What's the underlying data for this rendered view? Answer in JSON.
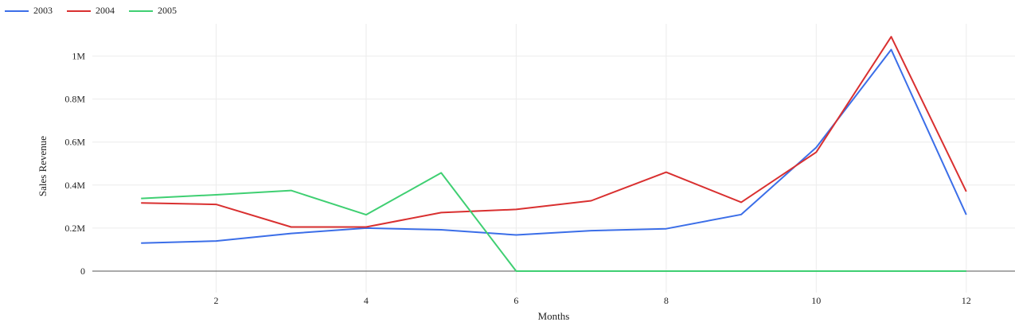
{
  "chart_data": {
    "type": "line",
    "title": "",
    "xlabel": "Months",
    "ylabel": "Sales Revenue",
    "xlim": [
      0.35,
      12.65
    ],
    "ylim": [
      -100000,
      1150000
    ],
    "x_ticks": [
      2,
      4,
      6,
      8,
      10,
      12
    ],
    "y_ticks": [
      0,
      200000,
      400000,
      600000,
      800000,
      1000000
    ],
    "y_tick_labels": [
      "0",
      "0.2M",
      "0.4M",
      "0.6M",
      "0.8M",
      "1M"
    ],
    "grid": true,
    "legend_position": "top-left",
    "x": [
      1,
      2,
      3,
      4,
      5,
      6,
      7,
      8,
      9,
      10,
      11,
      12
    ],
    "series": [
      {
        "name": "2003",
        "color": "#3b6ee8",
        "values": [
          130000,
          140000,
          175000,
          200000,
          192000,
          168000,
          188000,
          197000,
          263000,
          575000,
          1030000,
          262000
        ]
      },
      {
        "name": "2004",
        "color": "#d93030",
        "values": [
          317000,
          310000,
          205000,
          205000,
          272000,
          287000,
          327000,
          460000,
          320000,
          553000,
          1090000,
          370000
        ]
      },
      {
        "name": "2005",
        "color": "#3fcf72",
        "values": [
          338000,
          355000,
          375000,
          262000,
          457000,
          0,
          0,
          0,
          0,
          0,
          0,
          0
        ]
      }
    ]
  }
}
